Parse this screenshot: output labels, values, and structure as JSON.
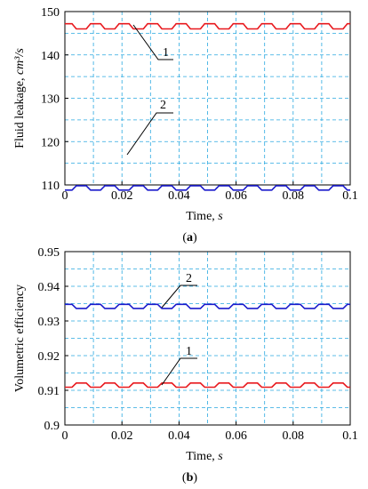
{
  "chart_data": [
    {
      "type": "line",
      "panel_label": "(a)",
      "xlabel": "Time, s",
      "ylabel": "Fluid leakage, cm³/s",
      "xlim": [
        0,
        0.1
      ],
      "ylim": [
        110,
        150
      ],
      "x_ticks": [
        "0",
        "0.02",
        "0.04",
        "0.06",
        "0.08",
        "0.1"
      ],
      "y_ticks": [
        "110",
        "120",
        "130",
        "140",
        "150"
      ],
      "grid": true,
      "series": [
        {
          "name": "1",
          "color": "#e8191e",
          "mean": 146.6,
          "amplitude": 0.6,
          "period": 0.01,
          "phase": 0.0075
        },
        {
          "name": "2",
          "color": "#1a1acc",
          "mean": 109.3,
          "amplitude": 0.5,
          "period": 0.01,
          "phase": 0.0025
        }
      ],
      "annotations": [
        "1",
        "2"
      ]
    },
    {
      "type": "line",
      "panel_label": "(b)",
      "xlabel": "Time, s",
      "ylabel": "Volumetric efficiency",
      "xlim": [
        0,
        0.1
      ],
      "ylim": [
        0.9,
        0.95
      ],
      "x_ticks": [
        "0",
        "0.02",
        "0.04",
        "0.06",
        "0.08",
        "0.1"
      ],
      "y_ticks": [
        "0.9",
        "0.91",
        "0.92",
        "0.93",
        "0.94",
        "0.95"
      ],
      "grid": true,
      "series": [
        {
          "name": "2",
          "color": "#1a1acc",
          "mean": 0.9342,
          "amplitude": 0.0006,
          "period": 0.01,
          "phase": 0.0075
        },
        {
          "name": "1",
          "color": "#e8191e",
          "mean": 0.9115,
          "amplitude": 0.0006,
          "period": 0.01,
          "phase": 0.0025
        }
      ],
      "annotations": [
        "2",
        "1"
      ]
    }
  ]
}
